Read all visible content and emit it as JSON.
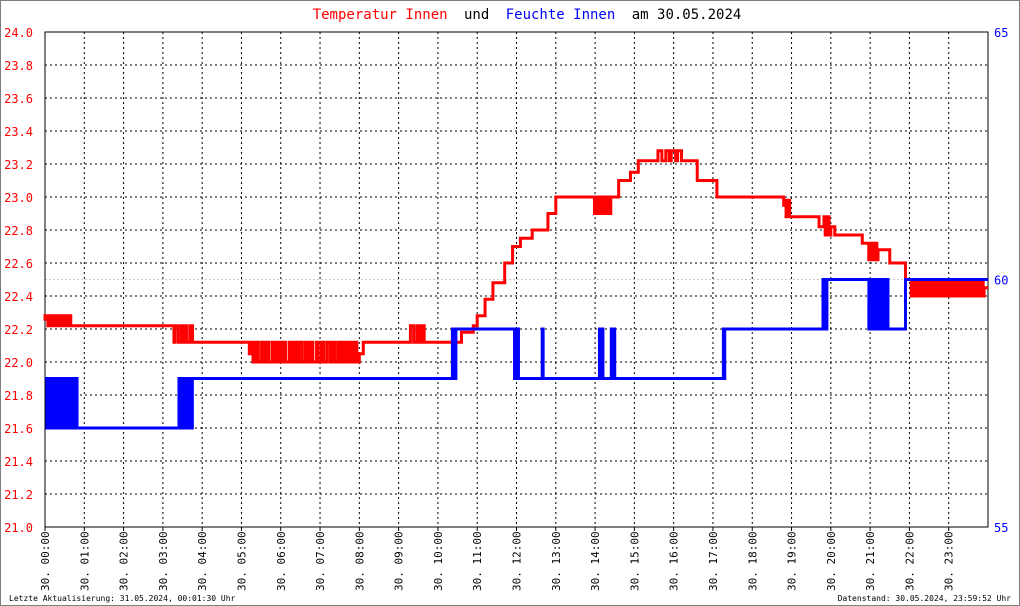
{
  "title": {
    "part1": "Temperatur Innen",
    "part2": "und",
    "part3": "Feuchte Innen",
    "part4": "am 30.05.2024"
  },
  "footer": {
    "left": "Letzte Aktualisierung: 31.05.2024, 00:01:30 Uhr",
    "right": "Datenstand: 30.05.2024, 23:59:52 Uhr"
  },
  "colors": {
    "temperature": "#ff0000",
    "humidity": "#0000ff",
    "grid": "#000000",
    "title_middle": "#000000"
  },
  "chart_data": {
    "type": "line",
    "x_ticks": [
      "30. 00:00",
      "30. 01:00",
      "30. 02:00",
      "30. 03:00",
      "30. 04:00",
      "30. 05:00",
      "30. 06:00",
      "30. 07:00",
      "30. 08:00",
      "30. 09:00",
      "30. 10:00",
      "30. 11:00",
      "30. 12:00",
      "30. 13:00",
      "30. 14:00",
      "30. 15:00",
      "30. 16:00",
      "30. 17:00",
      "30. 18:00",
      "30. 19:00",
      "30. 20:00",
      "30. 21:00",
      "30. 22:00",
      "30. 23:00"
    ],
    "xlim_hours": [
      0,
      24
    ],
    "y_left": {
      "ylim": [
        21.0,
        24.0
      ],
      "ticks": [
        "21.0",
        "21.2",
        "21.4",
        "21.6",
        "21.8",
        "22.0",
        "22.2",
        "22.4",
        "22.6",
        "22.8",
        "23.0",
        "23.2",
        "23.4",
        "23.6",
        "23.8",
        "24.0"
      ]
    },
    "y_right": {
      "ylim": [
        55,
        65
      ],
      "ticks": [
        "55",
        "60",
        "65"
      ],
      "reference_line": 60
    },
    "grid": true,
    "series": [
      {
        "name": "Temperatur Innen",
        "axis": "left",
        "step": [
          [
            0.0,
            22.25
          ],
          [
            0.5,
            22.22
          ],
          [
            3.3,
            22.22
          ],
          [
            3.6,
            22.12
          ],
          [
            5.1,
            22.12
          ],
          [
            5.2,
            22.05
          ],
          [
            8.1,
            22.12
          ],
          [
            9.3,
            22.22
          ],
          [
            9.7,
            22.12
          ],
          [
            10.6,
            22.18
          ],
          [
            10.9,
            22.22
          ],
          [
            11.0,
            22.28
          ],
          [
            11.2,
            22.38
          ],
          [
            11.4,
            22.48
          ],
          [
            11.7,
            22.6
          ],
          [
            11.9,
            22.7
          ],
          [
            12.1,
            22.75
          ],
          [
            12.4,
            22.8
          ],
          [
            12.8,
            22.9
          ],
          [
            13.0,
            23.0
          ],
          [
            14.0,
            22.9
          ],
          [
            14.3,
            23.0
          ],
          [
            14.6,
            23.1
          ],
          [
            14.9,
            23.15
          ],
          [
            15.1,
            23.22
          ],
          [
            15.6,
            23.28
          ],
          [
            16.2,
            23.22
          ],
          [
            16.6,
            23.1
          ],
          [
            17.1,
            23.0
          ],
          [
            18.8,
            22.95
          ],
          [
            18.9,
            22.88
          ],
          [
            19.7,
            22.82
          ],
          [
            20.1,
            22.77
          ],
          [
            20.8,
            22.72
          ],
          [
            21.0,
            22.68
          ],
          [
            21.5,
            22.6
          ],
          [
            21.9,
            22.5
          ],
          [
            22.2,
            22.45
          ]
        ],
        "noise": [
          [
            0.0,
            0.7,
            22.22,
            22.28,
            14
          ],
          [
            3.2,
            3.8,
            22.12,
            22.22,
            10
          ],
          [
            5.2,
            8.0,
            22.0,
            22.12,
            40
          ],
          [
            9.3,
            9.7,
            22.12,
            22.22,
            6
          ],
          [
            13.9,
            14.4,
            22.9,
            23.0,
            8
          ],
          [
            15.6,
            16.1,
            23.22,
            23.28,
            6
          ],
          [
            18.8,
            19.0,
            22.88,
            22.98,
            4
          ],
          [
            19.8,
            20.0,
            22.77,
            22.88,
            4
          ],
          [
            20.9,
            21.2,
            22.62,
            22.72,
            6
          ],
          [
            22.0,
            23.9,
            22.4,
            22.5,
            60
          ]
        ]
      },
      {
        "name": "Feuchte Innen",
        "axis": "right",
        "step": [
          [
            0.0,
            58
          ],
          [
            0.85,
            57
          ],
          [
            3.7,
            58
          ],
          [
            10.4,
            59
          ],
          [
            11.95,
            58
          ],
          [
            17.3,
            59
          ],
          [
            19.85,
            60
          ],
          [
            21.0,
            59
          ],
          [
            21.9,
            60
          ]
        ],
        "noise": [
          [
            0.0,
            0.85,
            57,
            58,
            22
          ],
          [
            3.4,
            3.75,
            57,
            58,
            8
          ],
          [
            10.35,
            10.5,
            58,
            59,
            3
          ],
          [
            11.9,
            12.05,
            58,
            59,
            3
          ],
          [
            12.65,
            12.7,
            58,
            59,
            2
          ],
          [
            14.1,
            14.2,
            58,
            59,
            3
          ],
          [
            14.4,
            14.5,
            58,
            59,
            3
          ],
          [
            17.25,
            17.35,
            58,
            59,
            3
          ],
          [
            19.8,
            19.9,
            59,
            60,
            2
          ],
          [
            20.9,
            21.5,
            59,
            60,
            12
          ]
        ]
      }
    ]
  }
}
